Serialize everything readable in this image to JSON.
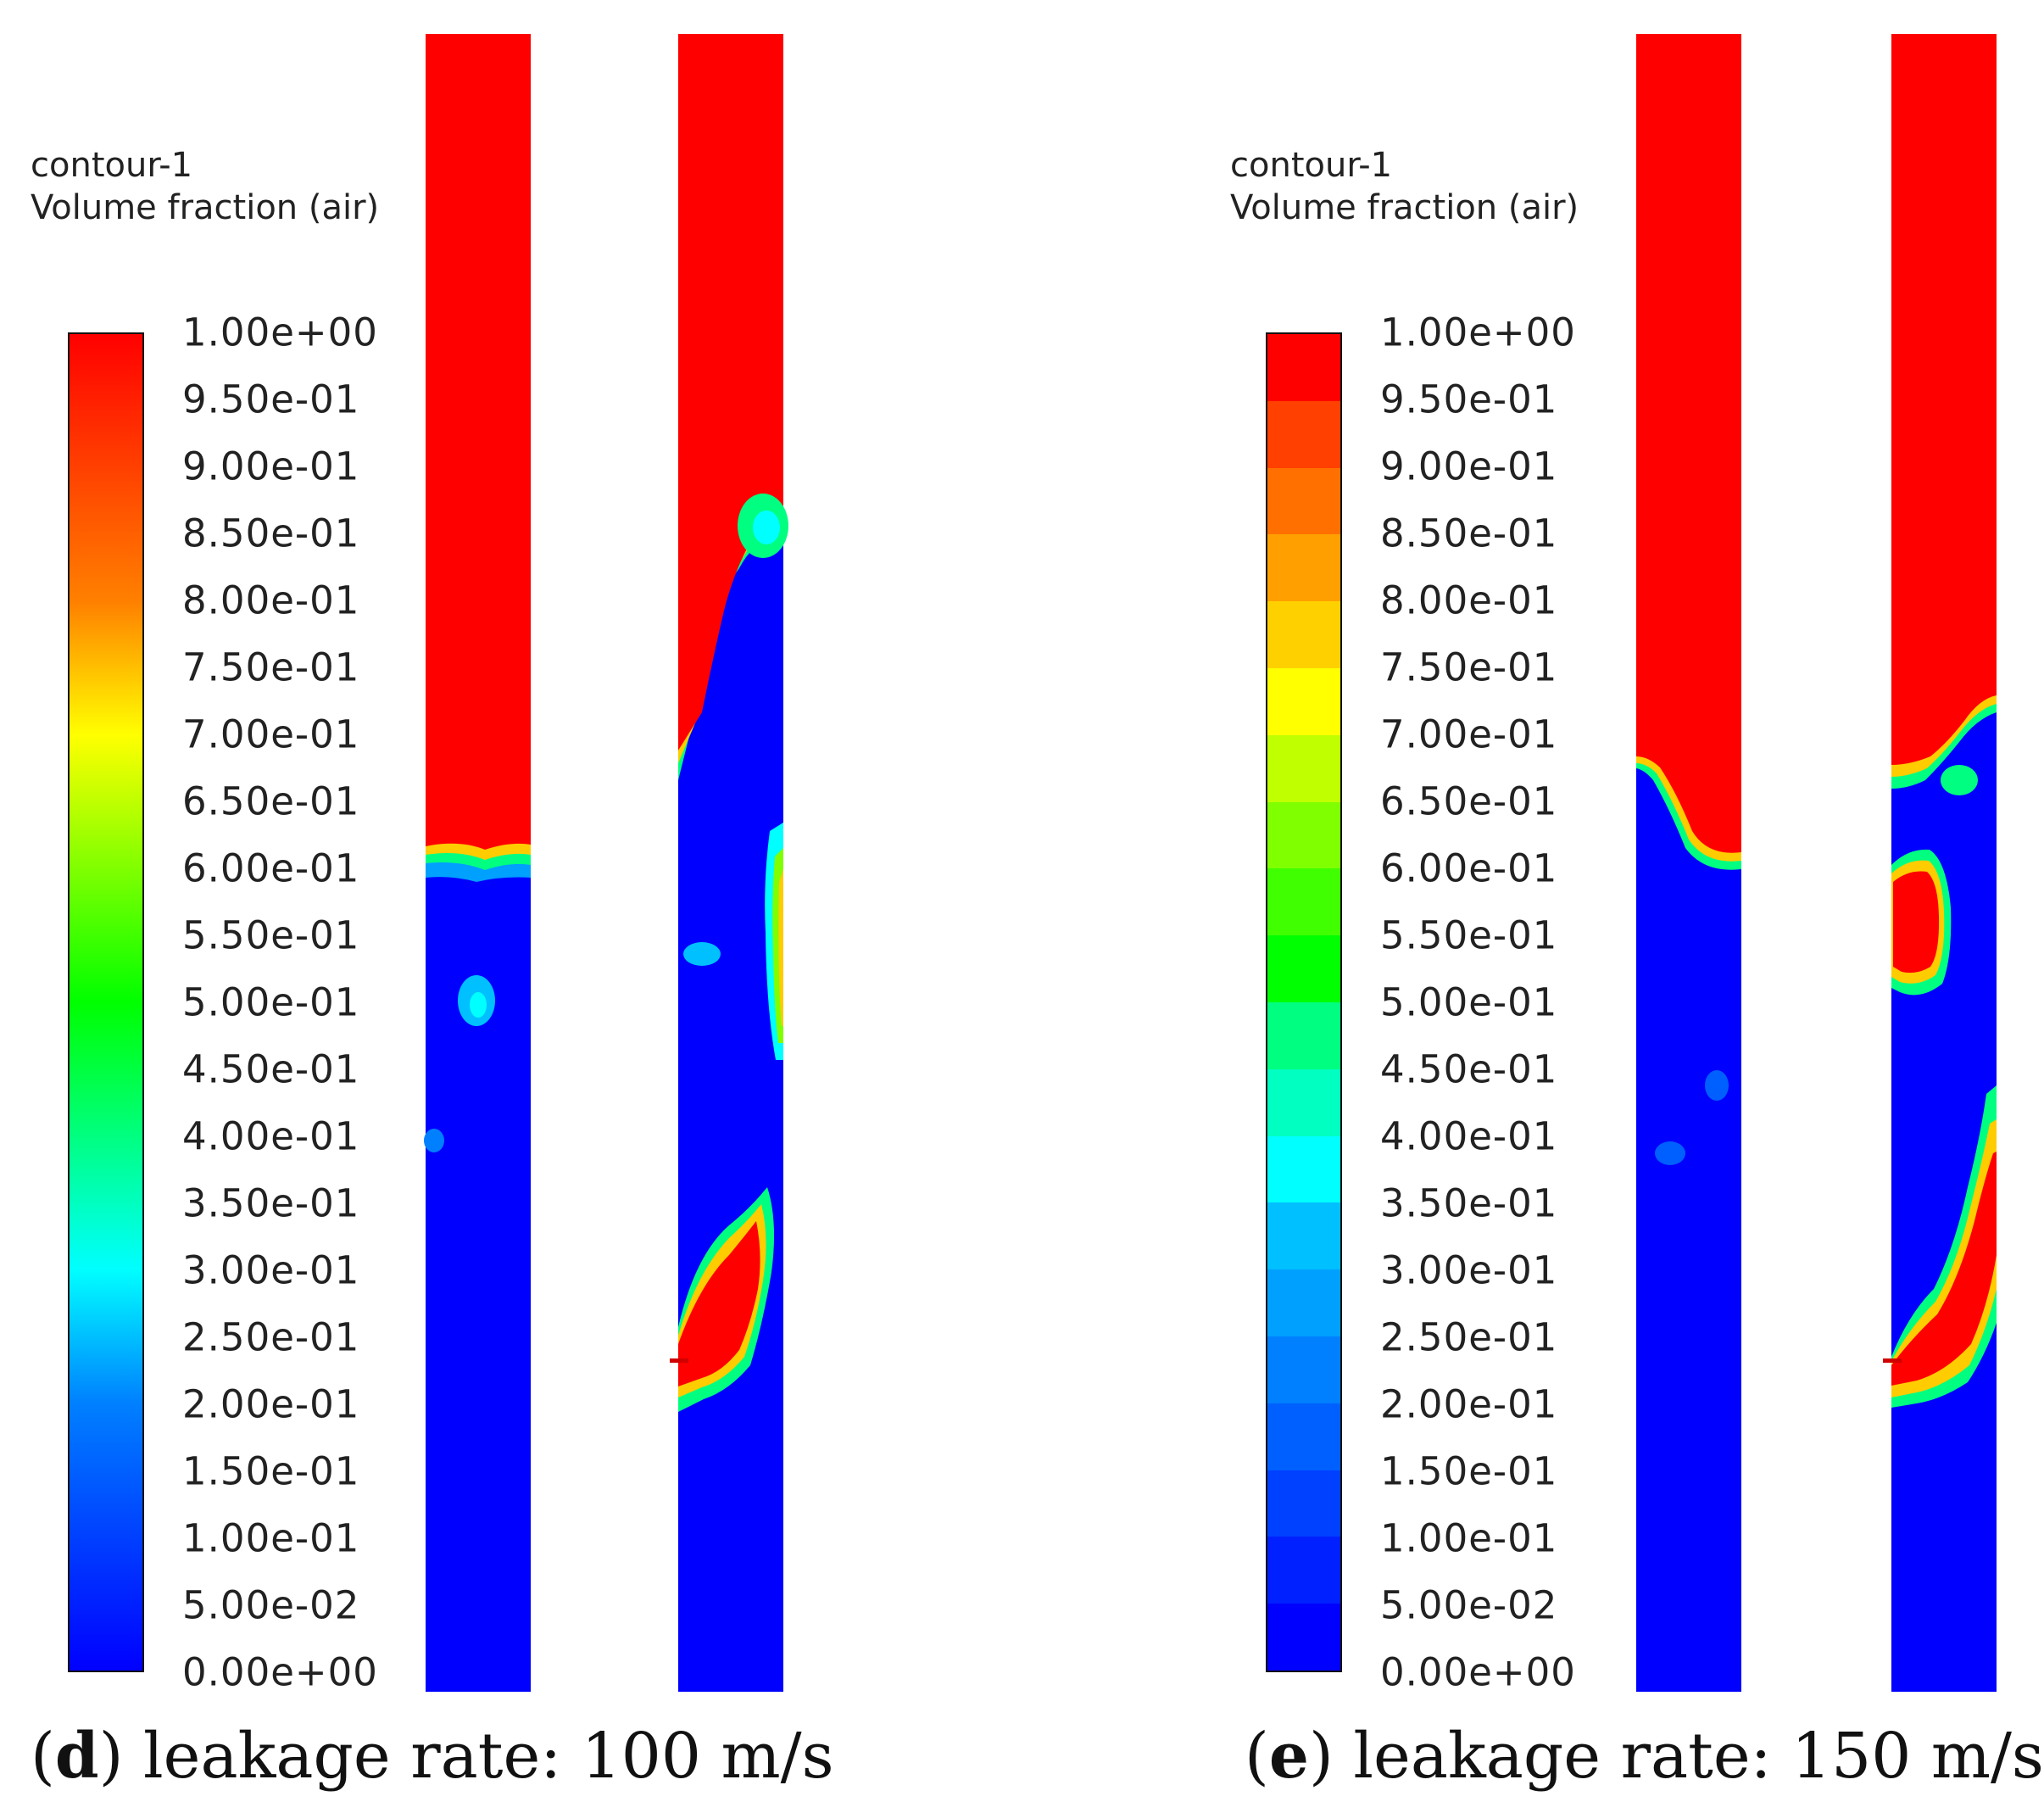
{
  "chart_data": [
    {
      "type": "heatmap",
      "panel": "d",
      "legend_title_line1": "contour-1",
      "legend_title_line2": "Volume fraction (air)",
      "colorbar_ticks": [
        "1.00e+00",
        "9.50e-01",
        "9.00e-01",
        "8.50e-01",
        "8.00e-01",
        "7.50e-01",
        "7.00e-01",
        "6.50e-01",
        "6.00e-01",
        "5.50e-01",
        "5.00e-01",
        "4.50e-01",
        "4.00e-01",
        "3.50e-01",
        "3.00e-01",
        "2.50e-01",
        "2.00e-01",
        "1.50e-01",
        "1.00e-01",
        "5.00e-02",
        "0.00e+00"
      ],
      "colorbar_range": [
        0,
        1
      ],
      "colorbar_style": "smooth",
      "caption_letter": "d",
      "caption_text": ") leakage rate: 100 m/s",
      "leakage_rate_m_s": 100
    },
    {
      "type": "heatmap",
      "panel": "e",
      "legend_title_line1": "contour-1",
      "legend_title_line2": "Volume fraction (air)",
      "colorbar_ticks": [
        "1.00e+00",
        "9.50e-01",
        "9.00e-01",
        "8.50e-01",
        "8.00e-01",
        "7.50e-01",
        "7.00e-01",
        "6.50e-01",
        "6.00e-01",
        "5.50e-01",
        "5.00e-01",
        "4.50e-01",
        "4.00e-01",
        "3.50e-01",
        "3.00e-01",
        "2.50e-01",
        "2.00e-01",
        "1.50e-01",
        "1.00e-01",
        "5.00e-02",
        "0.00e+00"
      ],
      "colorbar_range": [
        0,
        1
      ],
      "colorbar_style": "banded",
      "caption_letter": "e",
      "caption_text": ") leakage rate: 150 m/s",
      "leakage_rate_m_s": 150
    }
  ],
  "colors": {
    "air": "#ff0000",
    "water": "#0000ff",
    "band_colors_bottom_to_top": [
      "#0000ff",
      "#0020ff",
      "#0040ff",
      "#0060ff",
      "#0080ff",
      "#00a0ff",
      "#00c0ff",
      "#00ffff",
      "#00ffc0",
      "#00ff80",
      "#00ff00",
      "#40ff00",
      "#80ff00",
      "#c0ff00",
      "#ffff00",
      "#ffd000",
      "#ffa000",
      "#ff7000",
      "#ff4000",
      "#ff0000"
    ]
  }
}
